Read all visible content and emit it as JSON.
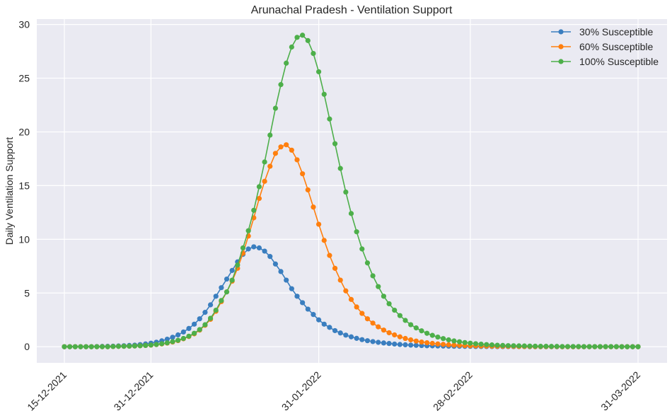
{
  "chart_data": {
    "type": "line",
    "title": "Arunachal Pradesh - Ventilation Support",
    "xlabel": "",
    "ylabel": "Daily Ventilation Support",
    "x_start": "15-12-2021",
    "x_end": "31-03-2022",
    "x_tick_labels": [
      "15-12-2021",
      "31-12-2021",
      "31-01-2022",
      "28-02-2022",
      "31-03-2022"
    ],
    "y_ticks": [
      0,
      5,
      10,
      15,
      20,
      25,
      30
    ],
    "ylim": [
      -1.5,
      30.5
    ],
    "grid": true,
    "legend": "top-right",
    "series": [
      {
        "name": "30% Susceptible",
        "color": "#3a7ebf",
        "values": [
          0,
          0,
          0,
          0,
          0,
          0,
          0.02,
          0.03,
          0.04,
          0.05,
          0.07,
          0.09,
          0.12,
          0.15,
          0.2,
          0.26,
          0.33,
          0.42,
          0.55,
          0.7,
          0.88,
          1.1,
          1.37,
          1.7,
          2.1,
          2.6,
          3.2,
          3.9,
          4.7,
          5.5,
          6.3,
          7.1,
          7.9,
          8.6,
          9.1,
          9.3,
          9.2,
          8.9,
          8.4,
          7.7,
          7.0,
          6.2,
          5.4,
          4.7,
          4.1,
          3.5,
          3.0,
          2.5,
          2.1,
          1.8,
          1.5,
          1.28,
          1.08,
          0.92,
          0.78,
          0.66,
          0.56,
          0.48,
          0.41,
          0.35,
          0.3,
          0.25,
          0.21,
          0.18,
          0.15,
          0.13,
          0.11,
          0.09,
          0.08,
          0.07,
          0.06,
          0.05,
          0.04,
          0.04,
          0.03,
          0.03,
          0.02,
          0.02,
          0.02,
          0.02,
          0.01,
          0.01,
          0.01,
          0.01,
          0.01,
          0.01,
          0,
          0,
          0,
          0,
          0,
          0,
          0,
          0,
          0,
          0,
          0,
          0,
          0,
          0,
          0,
          0,
          0,
          0,
          0,
          0,
          0
        ]
      },
      {
        "name": "60% Susceptible",
        "color": "#ff7f0e",
        "values": [
          0,
          0,
          0,
          0,
          0,
          0,
          0,
          0,
          0,
          0.02,
          0.03,
          0.04,
          0.05,
          0.07,
          0.09,
          0.12,
          0.15,
          0.2,
          0.26,
          0.34,
          0.44,
          0.57,
          0.74,
          0.95,
          1.2,
          1.55,
          2.0,
          2.55,
          3.3,
          4.2,
          5.1,
          6.1,
          7.3,
          8.7,
          10.3,
          12.0,
          13.8,
          15.4,
          16.8,
          18.0,
          18.6,
          18.8,
          18.3,
          17.4,
          16.1,
          14.6,
          13.0,
          11.4,
          9.9,
          8.5,
          7.3,
          6.2,
          5.2,
          4.4,
          3.7,
          3.1,
          2.6,
          2.2,
          1.85,
          1.55,
          1.3,
          1.1,
          0.92,
          0.77,
          0.64,
          0.53,
          0.44,
          0.37,
          0.31,
          0.26,
          0.22,
          0.18,
          0.15,
          0.13,
          0.11,
          0.09,
          0.08,
          0.07,
          0.06,
          0.05,
          0.04,
          0.04,
          0.03,
          0.03,
          0.02,
          0.02,
          0.02,
          0.01,
          0.01,
          0.01,
          0.01,
          0.01,
          0,
          0,
          0,
          0,
          0,
          0,
          0,
          0,
          0,
          0,
          0,
          0,
          0,
          0,
          0
        ]
      },
      {
        "name": "100% Susceptible",
        "color": "#4daf4a",
        "values": [
          0,
          0,
          0,
          0,
          0,
          0,
          0,
          0,
          0,
          0.02,
          0.03,
          0.04,
          0.05,
          0.07,
          0.09,
          0.12,
          0.16,
          0.21,
          0.28,
          0.36,
          0.47,
          0.6,
          0.77,
          0.98,
          1.25,
          1.6,
          2.05,
          2.65,
          3.4,
          4.3,
          5.1,
          6.2,
          7.6,
          9.2,
          10.8,
          12.7,
          14.9,
          17.2,
          19.7,
          22.2,
          24.4,
          26.4,
          27.9,
          28.8,
          29.0,
          28.5,
          27.3,
          25.6,
          23.5,
          21.2,
          18.9,
          16.6,
          14.4,
          12.4,
          10.7,
          9.1,
          7.8,
          6.6,
          5.6,
          4.7,
          4.0,
          3.4,
          2.9,
          2.45,
          2.05,
          1.75,
          1.48,
          1.25,
          1.06,
          0.9,
          0.76,
          0.64,
          0.54,
          0.46,
          0.39,
          0.33,
          0.28,
          0.24,
          0.2,
          0.17,
          0.14,
          0.12,
          0.1,
          0.09,
          0.08,
          0.07,
          0.06,
          0.05,
          0.04,
          0.04,
          0.03,
          0.03,
          0.02,
          0.02,
          0.02,
          0.02,
          0.01,
          0.01,
          0.01,
          0.01,
          0.01,
          0.01,
          0.01,
          0,
          0,
          0,
          0
        ]
      }
    ]
  }
}
